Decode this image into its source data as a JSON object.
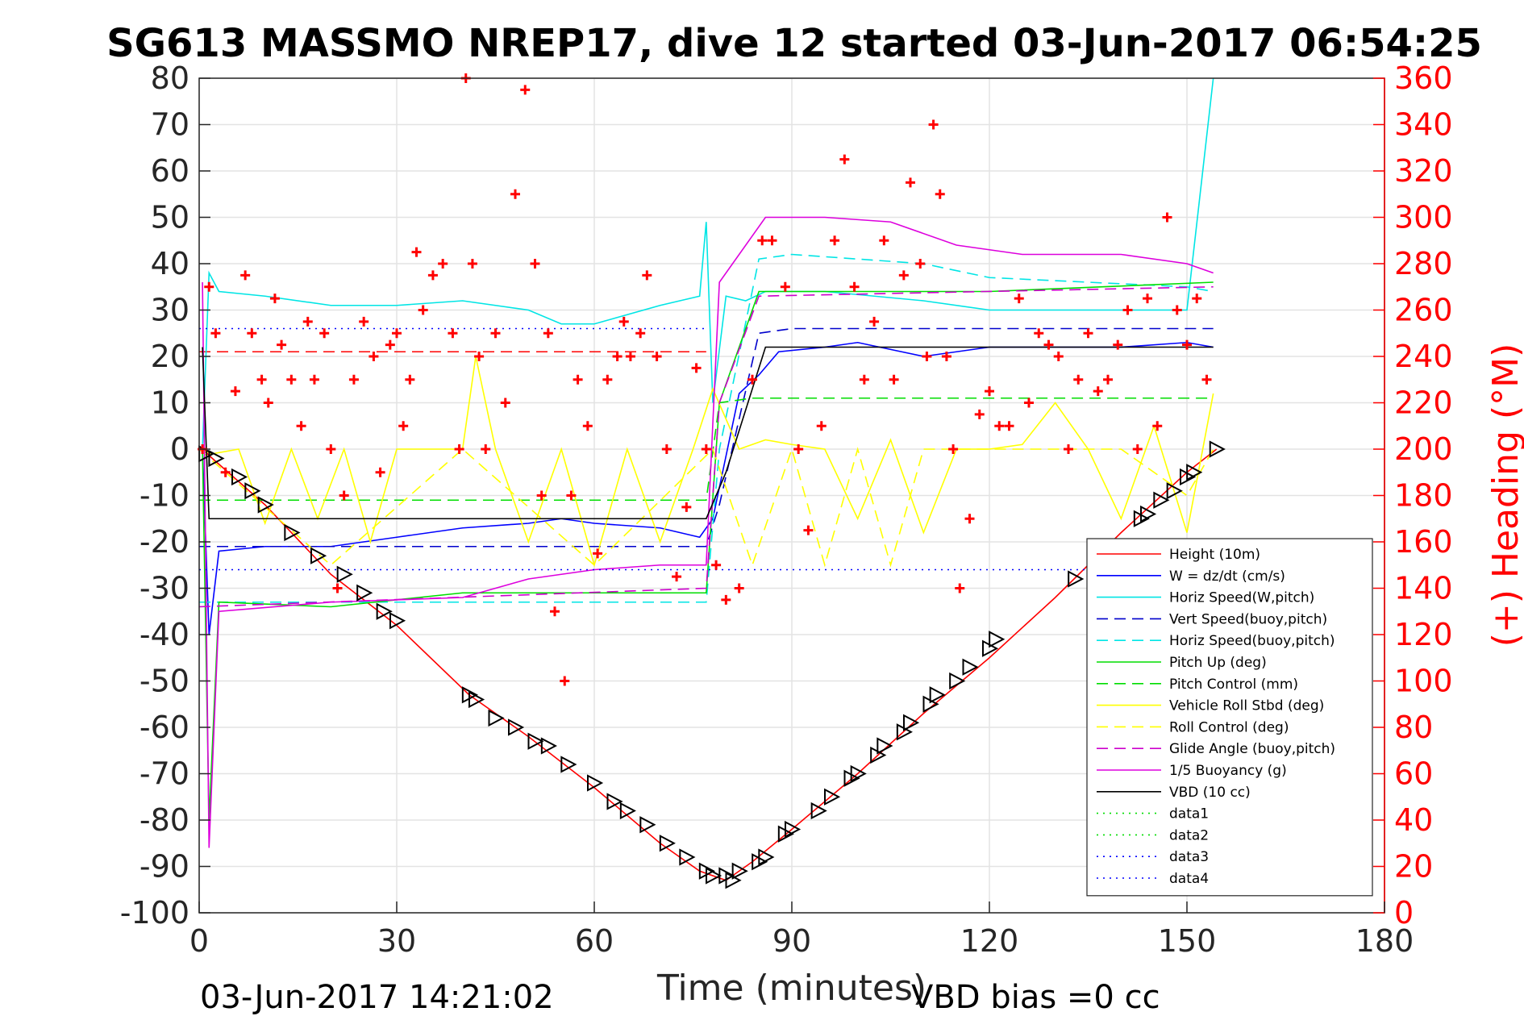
{
  "chart_data": {
    "type": "line",
    "title": "SG613 MASSMO NREP17, dive 12 started 03-Jun-2017 06:54:25",
    "xlabel": "Time (minutes)",
    "ylabel": "",
    "ylabel_right": "(+) Heading (°M)",
    "xlim": [
      0,
      180
    ],
    "ylim": [
      -100,
      80
    ],
    "ylim_right": [
      0,
      360
    ],
    "x_ticks": [
      "0",
      "30",
      "60",
      "90",
      "120",
      "150",
      "180"
    ],
    "y_ticks": [
      "80",
      "70",
      "60",
      "50",
      "40",
      "30",
      "20",
      "10",
      "0",
      "-10",
      "-20",
      "-30",
      "-40",
      "-50",
      "-60",
      "-70",
      "-80",
      "-90",
      "-100"
    ],
    "y_ticks_right": [
      "360",
      "340",
      "320",
      "300",
      "280",
      "260",
      "240",
      "220",
      "200",
      "180",
      "160",
      "140",
      "120",
      "100",
      "80",
      "60",
      "40",
      "20",
      "0"
    ],
    "grid": true,
    "legend_position": "bottom-right",
    "footer_left": "03-Jun-2017 14:21:02",
    "footer_right": "VBD bias =0 cc",
    "series": [
      {
        "name": "Height (10m)",
        "color": "#ff0000",
        "style": "solid",
        "x": [
          0.5,
          2,
          10,
          20,
          30,
          41,
          50,
          60,
          70,
          76,
          80,
          84,
          90,
          100,
          110,
          120,
          130,
          140,
          150,
          154.5
        ],
        "y": [
          0,
          -2,
          -12,
          -27,
          -38,
          -53,
          -62,
          -73,
          -85,
          -91,
          -93,
          -89,
          -82,
          -70,
          -57,
          -45,
          -32,
          -18,
          -5,
          0
        ]
      },
      {
        "name": "W = dz/dt (cm/s)",
        "color": "#0000ff",
        "style": "solid",
        "x": [
          0.5,
          1.5,
          3,
          10,
          20,
          30,
          40,
          50,
          55,
          60,
          70,
          76,
          78,
          82,
          85,
          88,
          95,
          100,
          110,
          120,
          130,
          140,
          150,
          154
        ],
        "y": [
          0,
          -40,
          -22,
          -21,
          -21,
          -19,
          -17,
          -16,
          -15,
          -16,
          -17,
          -19,
          -15,
          12,
          16,
          21,
          22,
          23,
          20,
          22,
          22,
          22,
          23,
          22
        ]
      },
      {
        "name": "Horiz Speed(W,pitch)",
        "color": "#00e5e5",
        "style": "solid",
        "x": [
          0.5,
          1.5,
          3,
          10,
          20,
          30,
          40,
          50,
          55,
          60,
          70,
          76,
          77,
          78,
          80,
          83,
          86,
          95,
          110,
          120,
          130,
          140,
          150,
          154
        ],
        "y": [
          0,
          38,
          34,
          33,
          31,
          31,
          32,
          30,
          27,
          27,
          31,
          33,
          49,
          10,
          33,
          32,
          34,
          34,
          32,
          30,
          30,
          30,
          30,
          80
        ]
      },
      {
        "name": "Vert Speed(buoy,pitch)",
        "color": "#0000cc",
        "style": "dash",
        "x": [
          0,
          77,
          79,
          85,
          90,
          110,
          120,
          150,
          154
        ],
        "y": [
          -21,
          -21,
          -12,
          25,
          26,
          26,
          26,
          26,
          26
        ]
      },
      {
        "name": "Horiz Speed(buoy,pitch)",
        "color": "#00e5e5",
        "style": "dash",
        "x": [
          0,
          77,
          79,
          85,
          90,
          110,
          120,
          150,
          154
        ],
        "y": [
          -33,
          -33,
          0,
          41,
          42,
          40,
          37,
          35,
          34
        ]
      },
      {
        "name": "Pitch Up (deg)",
        "color": "#00dd00",
        "style": "solid",
        "x": [
          0.5,
          1.5,
          3,
          20,
          40,
          50,
          60,
          70,
          77,
          79,
          85,
          95,
          110,
          120,
          154
        ],
        "y": [
          0,
          -80,
          -33,
          -34,
          -31,
          -31,
          -31,
          -31,
          -31,
          10,
          34,
          34,
          34,
          34,
          36
        ]
      },
      {
        "name": "Pitch Control (mm)",
        "color": "#00dd00",
        "style": "dash",
        "x": [
          0,
          77,
          79,
          84,
          154
        ],
        "y": [
          -11,
          -11,
          10,
          11,
          11
        ]
      },
      {
        "name": "Vehicle Roll Stbd (deg)",
        "color": "#ffff00",
        "style": "solid",
        "x": [
          0,
          2,
          6,
          10,
          14,
          18,
          22,
          26,
          30,
          35,
          40,
          42,
          45,
          50,
          55,
          60,
          65,
          70,
          75,
          78,
          82,
          86,
          90,
          95,
          100,
          105,
          110,
          115,
          120,
          125,
          130,
          135,
          140,
          145,
          150,
          154
        ],
        "y": [
          0,
          -1,
          0,
          -16,
          0,
          -15,
          0,
          -20,
          0,
          0,
          0,
          20,
          0,
          -20,
          0,
          -25,
          0,
          -20,
          0,
          13,
          0,
          2,
          1,
          0,
          -15,
          2,
          -18,
          0,
          0,
          1,
          10,
          0,
          -15,
          5,
          -18,
          12
        ]
      },
      {
        "name": "Roll Control (deg)",
        "color": "#ffff00",
        "style": "dash",
        "x": [
          0,
          20,
          40,
          60,
          78,
          84,
          90,
          95,
          100,
          105,
          110,
          120,
          130,
          140,
          150,
          154
        ],
        "y": [
          0,
          -25,
          0,
          -25,
          0,
          -25,
          0,
          -25,
          0,
          -25,
          0,
          0,
          0,
          0,
          -10,
          0
        ]
      },
      {
        "name": "Glide Angle (buoy,pitch)",
        "color": "#cc00cc",
        "style": "dash",
        "x": [
          0,
          77,
          79,
          85,
          154
        ],
        "y": [
          -34,
          -30,
          10,
          33,
          35
        ]
      },
      {
        "name": "1/5 Buoyancy (g)",
        "color": "#dd00dd",
        "style": "solid",
        "x": [
          0.5,
          1.5,
          3,
          20,
          40,
          50,
          60,
          70,
          77,
          79,
          86,
          95,
          105,
          115,
          125,
          140,
          150,
          154
        ],
        "y": [
          36,
          -86,
          -35,
          -33,
          -32,
          -28,
          -26,
          -25,
          -25,
          36,
          50,
          50,
          49,
          44,
          42,
          42,
          40,
          38
        ]
      },
      {
        "name": "VBD (10 cc)",
        "color": "#000000",
        "style": "solid",
        "x": [
          0.5,
          1.5,
          77,
          80,
          86,
          154
        ],
        "y": [
          22,
          -15,
          -15,
          -5,
          22,
          22
        ]
      },
      {
        "name": "data1",
        "color": "#00dd00",
        "style": "dot",
        "x": [],
        "y": []
      },
      {
        "name": "data2",
        "color": "#00dd00",
        "style": "dot",
        "x": [],
        "y": []
      },
      {
        "name": "data3",
        "color": "#0000ff",
        "style": "dot",
        "x": [
          0,
          77
        ],
        "y": [
          26,
          26
        ]
      },
      {
        "name": "data4",
        "color": "#0000ff",
        "style": "dot",
        "x": [
          0,
          154
        ],
        "y": [
          -26,
          -26
        ]
      }
    ],
    "reference_lines": [
      {
        "color": "#ff0000",
        "style": "dash",
        "x": [
          0,
          77
        ],
        "y": [
          21,
          21
        ]
      }
    ],
    "heading_markers": {
      "marker": "+",
      "color": "#ff0000",
      "axis": "right",
      "x": [
        0.5,
        1.5,
        2.5,
        4,
        5.5,
        7,
        8,
        9.5,
        10.5,
        11.5,
        12.5,
        14,
        15.5,
        16.5,
        17.5,
        19,
        20,
        21,
        22,
        23.5,
        25,
        26.5,
        27.5,
        29,
        30,
        31,
        32,
        33,
        34,
        35.5,
        37,
        38.5,
        39.5,
        40.5,
        41.5,
        42.5,
        43.5,
        45,
        46.5,
        48,
        49.5,
        51,
        52,
        53,
        54,
        55.5,
        56.5,
        57.5,
        59,
        60.5,
        62,
        63.5,
        64.5,
        65.5,
        67,
        68,
        69.5,
        71,
        72.5,
        74,
        75.5,
        77,
        78.5,
        80,
        82,
        84,
        85.5,
        87,
        89,
        91,
        92.5,
        94.5,
        96.5,
        98,
        99.5,
        101,
        102.5,
        104,
        105.5,
        107,
        108,
        109.5,
        110.5,
        111.5,
        112.5,
        113.5,
        114.5,
        115.5,
        117,
        118.5,
        120,
        121.5,
        123,
        124.5,
        126,
        127.5,
        129,
        130.5,
        132,
        133.5,
        135,
        136.5,
        138,
        139.5,
        141,
        142.5,
        144,
        145.5,
        147,
        148.5,
        150,
        151.5,
        153
      ],
      "y": [
        200,
        270,
        250,
        190,
        225,
        275,
        250,
        230,
        220,
        265,
        245,
        230,
        210,
        255,
        230,
        250,
        200,
        140,
        180,
        230,
        255,
        240,
        190,
        245,
        250,
        210,
        230,
        285,
        260,
        275,
        280,
        250,
        200,
        360,
        280,
        240,
        200,
        250,
        220,
        310,
        355,
        280,
        180,
        250,
        130,
        100,
        180,
        230,
        210,
        155,
        230,
        240,
        255,
        240,
        250,
        275,
        240,
        200,
        145,
        175,
        235,
        200,
        150,
        135,
        140,
        230,
        290,
        290,
        270,
        200,
        165,
        210,
        290,
        325,
        270,
        230,
        255,
        290,
        230,
        275,
        315,
        280,
        240,
        340,
        310,
        240,
        200,
        140,
        170,
        215,
        225,
        210,
        210,
        265,
        220,
        250,
        245,
        240,
        200,
        230,
        250,
        225,
        230,
        245,
        260,
        200,
        265,
        210,
        300,
        260,
        245,
        265,
        230
      ]
    },
    "vertex_markers": {
      "marker": "triangle",
      "color": "#000000",
      "x": [
        1,
        2.5,
        6,
        8,
        10,
        14,
        18,
        22,
        25,
        28,
        30,
        41,
        42,
        45,
        48,
        51,
        53,
        56,
        60,
        63,
        65,
        68,
        71,
        74,
        77,
        78,
        80,
        81,
        82,
        85,
        86,
        89,
        90,
        94,
        96,
        99,
        100,
        103,
        104,
        107,
        108,
        111,
        112,
        115,
        117,
        120,
        121,
        133,
        143,
        144,
        146,
        148,
        150,
        151,
        154.5
      ],
      "y": [
        -1,
        -2,
        -6,
        -9,
        -12,
        -18,
        -23,
        -27,
        -31,
        -35,
        -37,
        -53,
        -54,
        -58,
        -60,
        -63,
        -64,
        -68,
        -72,
        -76,
        -78,
        -81,
        -85,
        -88,
        -91,
        -92,
        -92,
        -93,
        -91,
        -89,
        -88,
        -83,
        -82,
        -78,
        -75,
        -71,
        -70,
        -66,
        -64,
        -61,
        -59,
        -55,
        -53,
        -50,
        -47,
        -43,
        -41,
        -28,
        -15,
        -14,
        -11,
        -9,
        -6,
        -5,
        0
      ]
    }
  }
}
